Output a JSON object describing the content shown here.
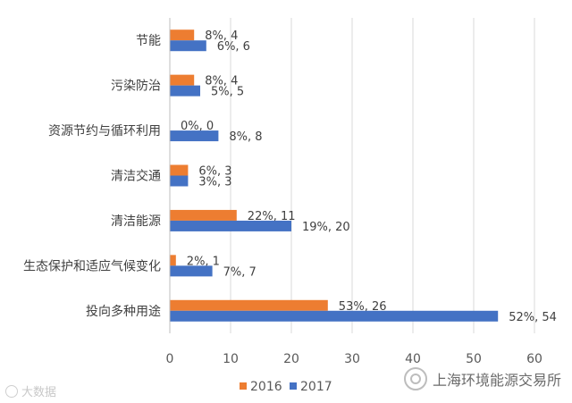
{
  "chart_data": {
    "type": "bar",
    "orientation": "horizontal",
    "categories": [
      "节能",
      "污染防治",
      "资源节约与循环利用",
      "清洁交通",
      "清洁能源",
      "生态保护和适应气候变化",
      "投向多种用途"
    ],
    "series": [
      {
        "name": "2016",
        "color": "#ED7D31",
        "values": [
          4,
          4,
          0,
          3,
          11,
          1,
          26
        ],
        "labels": [
          "8%, 4",
          "8%, 4",
          "0%, 0",
          "6%, 3",
          "22%, 11",
          "2%, 1",
          "53%, 26"
        ]
      },
      {
        "name": "2017",
        "color": "#4472C4",
        "values": [
          6,
          5,
          8,
          3,
          20,
          7,
          54
        ],
        "labels": [
          "6%, 6",
          "5%, 5",
          "8%, 8",
          "3%, 3",
          "19%, 20",
          "7%, 7",
          "52%, 54"
        ]
      }
    ],
    "xlim": [
      0,
      60
    ],
    "xticks": [
      0,
      10,
      20,
      30,
      40,
      50,
      60
    ],
    "grid": true,
    "legend_position": "bottom"
  },
  "watermark": {
    "left": "大数据",
    "right": "上海环境能源交易所"
  }
}
